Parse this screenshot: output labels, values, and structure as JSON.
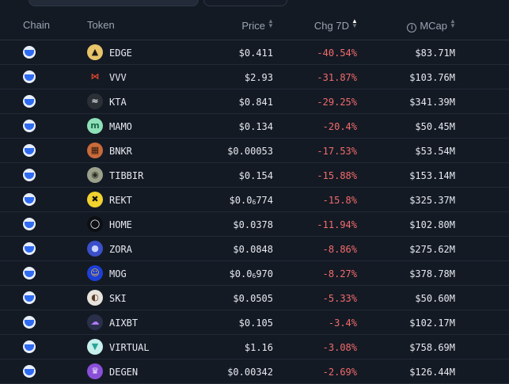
{
  "colors": {
    "background": "#141a24",
    "negative": "#f26b6b",
    "chain_icon": "#2f6bf0"
  },
  "header": {
    "chain": "Chain",
    "token": "Token",
    "price": "Price",
    "chg7d": "Chg 7D",
    "mcap": "MCap"
  },
  "rows": [
    {
      "symbol": "EDGE",
      "price": "$0.411",
      "chg": "-40.54%",
      "mcap": "$83.71M",
      "icon": "edge-icon",
      "icon_bg": "#e8c46a",
      "icon_fg": "#1a1a1a",
      "glyph": "▲"
    },
    {
      "symbol": "VVV",
      "price": "$2.93",
      "chg": "-31.87%",
      "mcap": "$103.76M",
      "icon": "vvv-icon",
      "icon_bg": "#141a24",
      "icon_fg": "#d9452b",
      "glyph": "⋈"
    },
    {
      "symbol": "KTA",
      "price": "$0.841",
      "chg": "-29.25%",
      "mcap": "$341.39M",
      "icon": "kta-icon",
      "icon_bg": "#2b2f36",
      "icon_fg": "#e6e9ef",
      "glyph": "≈"
    },
    {
      "symbol": "MAMO",
      "price": "$0.134",
      "chg": "-20.4%",
      "mcap": "$50.45M",
      "icon": "mamo-icon",
      "icon_bg": "#8ee0b8",
      "icon_fg": "#1e6b4a",
      "glyph": "m"
    },
    {
      "symbol": "BNKR",
      "price": "$0.00053",
      "chg": "-17.53%",
      "mcap": "$53.54M",
      "icon": "bnkr-icon",
      "icon_bg": "#c96a3a",
      "icon_fg": "#2a1a10",
      "glyph": "▦"
    },
    {
      "symbol": "TIBBIR",
      "price": "$0.154",
      "chg": "-15.88%",
      "mcap": "$153.14M",
      "icon": "tibbir-icon",
      "icon_bg": "#9aa08a",
      "icon_fg": "#2a2e24",
      "glyph": "◉"
    },
    {
      "symbol": "REKT",
      "price_prefix": "$0.0",
      "price_zeros": "6",
      "price_digits": "774",
      "chg": "-15.8%",
      "mcap": "$325.37M",
      "icon": "rekt-icon",
      "icon_bg": "#f2d22e",
      "icon_fg": "#111111",
      "glyph": "✖"
    },
    {
      "symbol": "HOME",
      "price": "$0.0378",
      "chg": "-11.94%",
      "mcap": "$102.80M",
      "icon": "home-icon",
      "icon_bg": "#0c0f14",
      "icon_fg": "#ffffff",
      "glyph": "◯"
    },
    {
      "symbol": "ZORA",
      "price": "$0.0848",
      "chg": "-8.86%",
      "mcap": "$275.62M",
      "icon": "zora-icon",
      "icon_bg": "#3b4fc9",
      "icon_fg": "#c7d4ff",
      "glyph": "●"
    },
    {
      "symbol": "MOG",
      "price_prefix": "$0.0",
      "price_zeros": "6",
      "price_digits": "970",
      "chg": "-8.27%",
      "mcap": "$378.78M",
      "icon": "mog-icon",
      "icon_bg": "#1e3fd6",
      "icon_fg": "#f5c532",
      "glyph": "☺"
    },
    {
      "symbol": "SKI",
      "price": "$0.0505",
      "chg": "-5.33%",
      "mcap": "$50.60M",
      "icon": "ski-icon",
      "icon_bg": "#e8e3dc",
      "icon_fg": "#5a3a2a",
      "glyph": "◐"
    },
    {
      "symbol": "AIXBT",
      "price": "$0.105",
      "chg": "-3.4%",
      "mcap": "$102.17M",
      "icon": "aixbt-icon",
      "icon_bg": "#2a2f4a",
      "icon_fg": "#b07bff",
      "glyph": "☁"
    },
    {
      "symbol": "VIRTUAL",
      "price": "$1.16",
      "chg": "-3.08%",
      "mcap": "$758.69M",
      "icon": "virtual-icon",
      "icon_bg": "#c8f0ec",
      "icon_fg": "#2aa598",
      "glyph": "▼"
    },
    {
      "symbol": "DEGEN",
      "price": "$0.00342",
      "chg": "-2.69%",
      "mcap": "$126.44M",
      "icon": "degen-icon",
      "icon_bg": "#8a4fd8",
      "icon_fg": "#f0e2ff",
      "glyph": "♛"
    }
  ]
}
